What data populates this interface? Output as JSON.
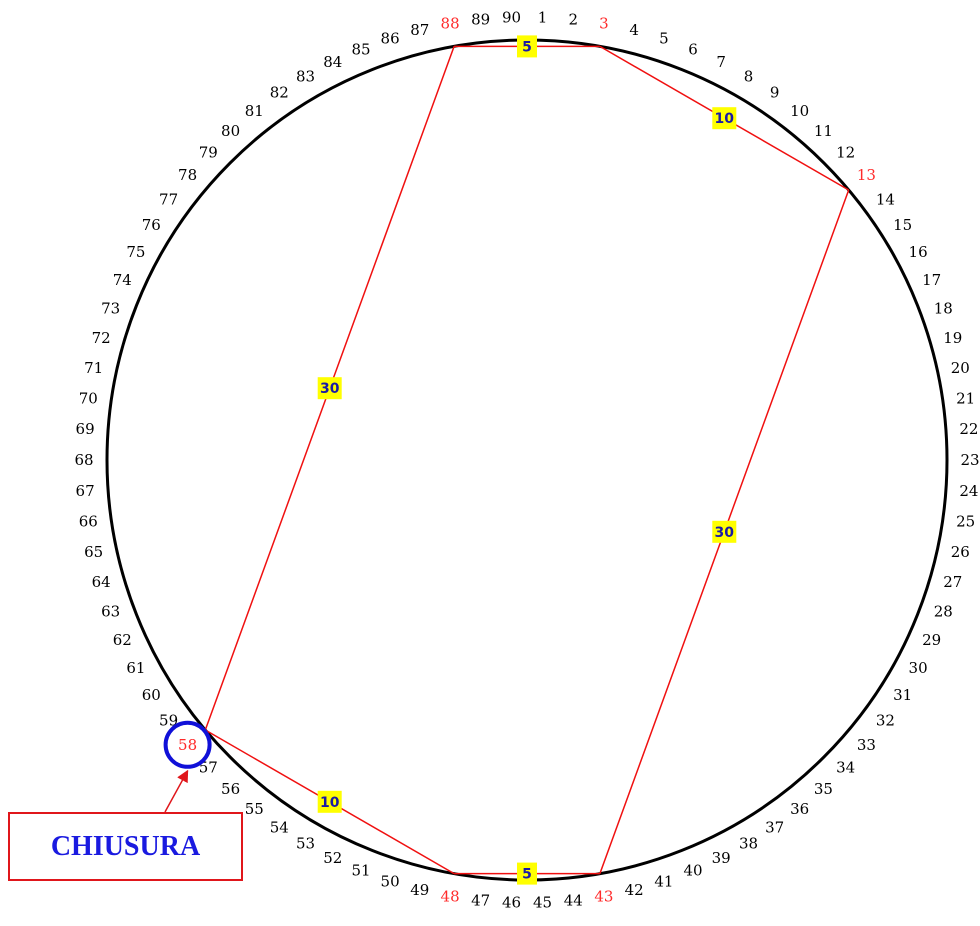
{
  "wheel": {
    "count": 90,
    "numbers": [
      "1",
      "2",
      "3",
      "4",
      "5",
      "6",
      "7",
      "8",
      "9",
      "10",
      "11",
      "12",
      "13",
      "14",
      "15",
      "16",
      "17",
      "18",
      "19",
      "20",
      "21",
      "22",
      "23",
      "24",
      "25",
      "26",
      "27",
      "28",
      "29",
      "30",
      "31",
      "32",
      "33",
      "34",
      "35",
      "36",
      "37",
      "38",
      "39",
      "40",
      "41",
      "42",
      "43",
      "44",
      "45",
      "46",
      "47",
      "48",
      "49",
      "50",
      "51",
      "52",
      "53",
      "54",
      "55",
      "56",
      "57",
      "58",
      "59",
      "60",
      "61",
      "62",
      "63",
      "64",
      "65",
      "66",
      "67",
      "68",
      "69",
      "70",
      "71",
      "72",
      "73",
      "74",
      "75",
      "76",
      "77",
      "78",
      "79",
      "80",
      "81",
      "82",
      "83",
      "84",
      "85",
      "86",
      "87",
      "88",
      "89",
      "90"
    ],
    "highlighted": [
      "3",
      "13",
      "43",
      "48",
      "58",
      "88"
    ]
  },
  "figure": {
    "vertices": [
      "58",
      "88",
      "3",
      "13",
      "43",
      "48"
    ],
    "segments": [
      {
        "from": "58",
        "to": "88",
        "label": "30"
      },
      {
        "from": "88",
        "to": "3",
        "label": "5"
      },
      {
        "from": "3",
        "to": "13",
        "label": "10"
      },
      {
        "from": "13",
        "to": "43",
        "label": "30"
      },
      {
        "from": "43",
        "to": "48",
        "label": "5"
      },
      {
        "from": "48",
        "to": "58",
        "label": "10"
      }
    ]
  },
  "closure": {
    "marker": "58",
    "label": "CHIUSURA"
  },
  "colors": {
    "circle": "#000000",
    "number": "#000000",
    "highlight": "#ff2a2a",
    "line": "#f01010",
    "badge_fill": "#ffff00",
    "badge_text": "#1a1aa6",
    "marker_ring": "#1010d8",
    "callout_text": "#1a1ae0",
    "callout_border": "#e0161b"
  }
}
